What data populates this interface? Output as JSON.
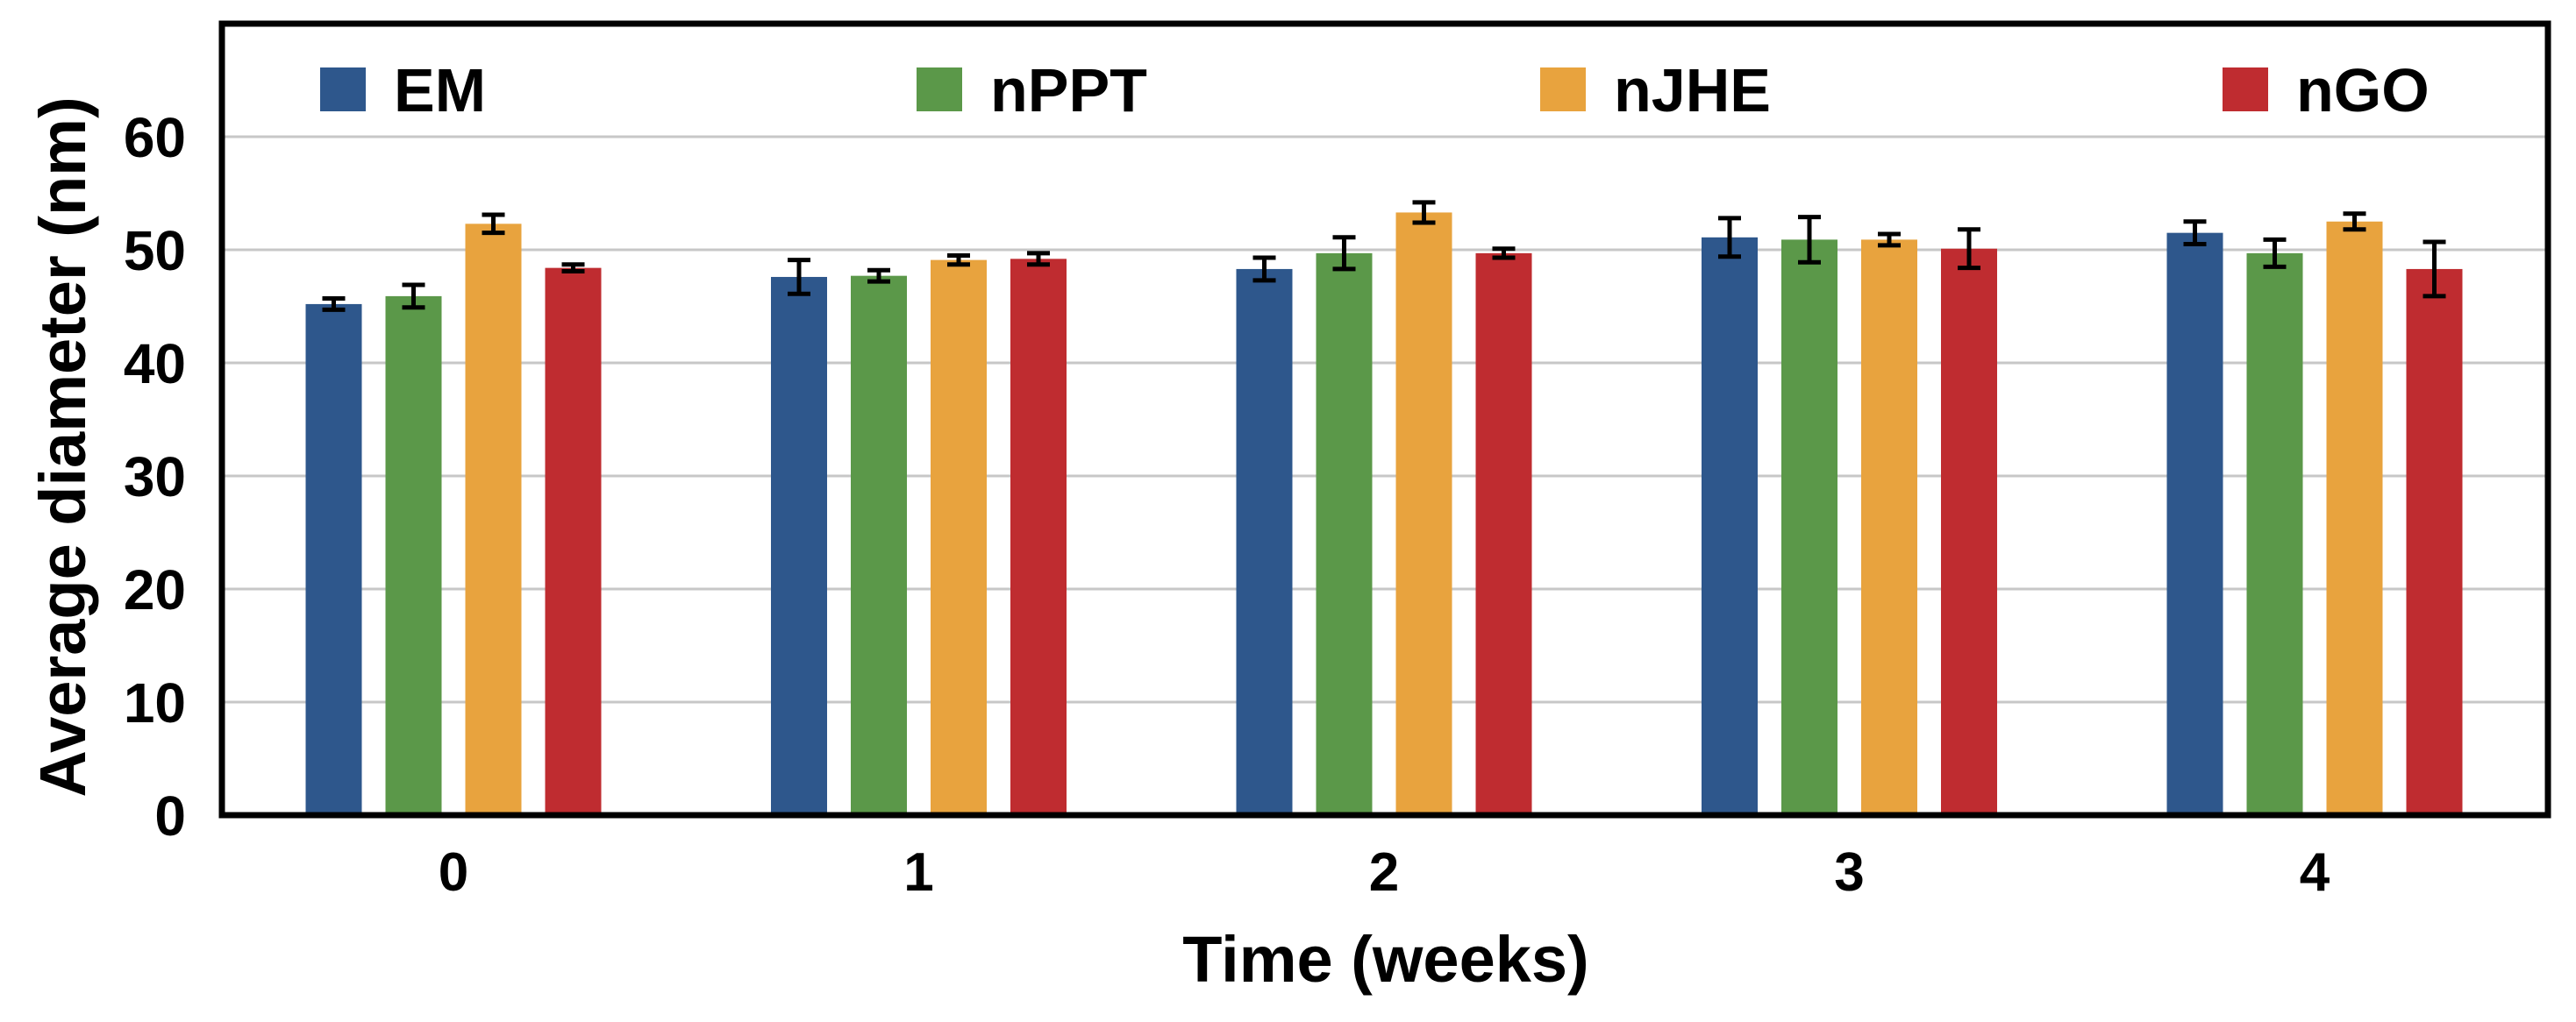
{
  "figure": {
    "description": "Grouped bar chart with error bars showing average nanoparticle diameter over time"
  },
  "chart_data": {
    "type": "bar",
    "title": "",
    "xlabel": "Time (weeks)",
    "ylabel": "Average diameter (nm)",
    "categories": [
      "0",
      "1",
      "2",
      "3",
      "4"
    ],
    "yticks": [
      0,
      10,
      20,
      30,
      40,
      50,
      60
    ],
    "ylim": [
      0,
      70
    ],
    "grid": "horizontal",
    "legend_position": "top row inside plot",
    "series": [
      {
        "name": "EM",
        "color": "#2E578C",
        "values": [
          45.2,
          47.6,
          48.3,
          51.1,
          51.5
        ],
        "errors": [
          0.5,
          1.5,
          1.0,
          1.7,
          1.0
        ]
      },
      {
        "name": "nPPT",
        "color": "#5B9849",
        "values": [
          45.9,
          47.7,
          49.7,
          50.9,
          49.7
        ],
        "errors": [
          1.0,
          0.5,
          1.4,
          2.0,
          1.2
        ]
      },
      {
        "name": "nJHE",
        "color": "#E8A33E",
        "values": [
          52.3,
          49.1,
          53.3,
          50.9,
          52.5
        ],
        "errors": [
          0.8,
          0.4,
          0.9,
          0.5,
          0.7
        ]
      },
      {
        "name": "nGO",
        "color": "#BF2C30",
        "values": [
          48.4,
          49.2,
          49.7,
          50.1,
          48.3
        ],
        "errors": [
          0.3,
          0.5,
          0.4,
          1.7,
          2.4
        ]
      }
    ],
    "style_colors": {
      "axis_frame": "#000000",
      "gridline": "#c7c7c7",
      "error_bar": "#000000",
      "background": "#ffffff",
      "text": "#000000"
    }
  }
}
